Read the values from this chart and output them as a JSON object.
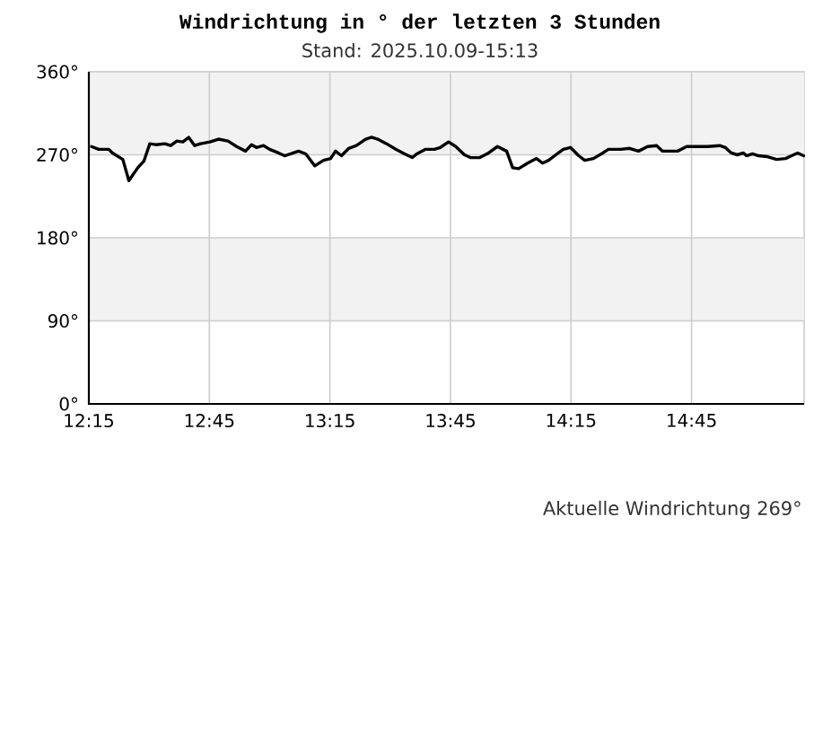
{
  "chart_data": {
    "type": "line",
    "title": "Windrichtung in ° der letzten 3 Stunden",
    "subtitle": "Stand: 2025.10.09-15:13",
    "annotations": [
      "Aktuelle Windrichtung 269°"
    ],
    "x": [
      12.261,
      12.291,
      12.333,
      12.348,
      12.391,
      12.416,
      12.453,
      12.478,
      12.503,
      12.528,
      12.565,
      12.59,
      12.615,
      12.64,
      12.664,
      12.689,
      12.713,
      12.752,
      12.788,
      12.827,
      12.863,
      12.9,
      12.925,
      12.945,
      12.975,
      13.0,
      13.037,
      13.062,
      13.087,
      13.12,
      13.15,
      13.187,
      13.223,
      13.253,
      13.273,
      13.298,
      13.328,
      13.36,
      13.398,
      13.423,
      13.448,
      13.485,
      13.523,
      13.56,
      13.592,
      13.61,
      13.647,
      13.683,
      13.708,
      13.742,
      13.772,
      13.808,
      13.833,
      13.872,
      13.908,
      13.945,
      13.983,
      14.008,
      14.033,
      14.07,
      14.107,
      14.132,
      14.157,
      14.182,
      14.218,
      14.248,
      14.282,
      14.307,
      14.343,
      14.382,
      14.405,
      14.455,
      14.493,
      14.53,
      14.568,
      14.605,
      14.63,
      14.692,
      14.73,
      14.778,
      14.817,
      14.867,
      14.89,
      14.915,
      14.94,
      14.965,
      14.978,
      15.003,
      15.028,
      15.065,
      15.103,
      15.14,
      15.165,
      15.19,
      15.215
    ],
    "values": [
      279,
      276,
      276,
      272,
      265,
      242,
      256,
      263,
      282,
      281,
      282,
      280,
      285,
      284,
      289,
      280,
      282,
      284,
      287,
      285,
      279,
      274,
      281,
      278,
      280,
      276,
      272,
      269,
      271,
      274,
      271,
      258,
      264,
      266,
      274,
      269,
      277,
      280,
      287,
      289,
      287,
      282,
      276,
      271,
      267,
      271,
      276,
      276,
      278,
      284,
      279,
      270,
      267,
      267,
      272,
      279,
      274,
      256,
      255,
      261,
      266,
      261,
      264,
      269,
      276,
      278,
      269,
      264,
      266,
      272,
      276,
      276,
      277,
      274,
      279,
      280,
      274,
      274,
      279,
      279,
      279,
      280,
      278,
      272,
      270,
      272,
      269,
      271,
      269,
      268,
      265,
      266,
      269,
      272,
      269
    ],
    "color": "#000000",
    "line_style": "solid",
    "xlim": [
      12.25,
      15.217
    ],
    "xticks": [
      {
        "value": 12.25,
        "label": "12:15"
      },
      {
        "value": 12.75,
        "label": "12:45"
      },
      {
        "value": 13.25,
        "label": "13:15"
      },
      {
        "value": 13.75,
        "label": "13:45"
      },
      {
        "value": 14.25,
        "label": "14:15"
      },
      {
        "value": 14.75,
        "label": "14:45"
      }
    ],
    "ylim": [
      0,
      360
    ],
    "yticks": [
      {
        "value": 0,
        "label": "0°"
      },
      {
        "value": 90,
        "label": "90°"
      },
      {
        "value": 180,
        "label": "180°"
      },
      {
        "value": 270,
        "label": "270°"
      },
      {
        "value": 360,
        "label": "360°"
      }
    ],
    "grid": true,
    "bands": [
      {
        "axis": "y",
        "from": 90,
        "to": 180,
        "color": "#f2f2f2"
      },
      {
        "axis": "y",
        "from": 270,
        "to": 360,
        "color": "#f2f2f2"
      }
    ]
  }
}
